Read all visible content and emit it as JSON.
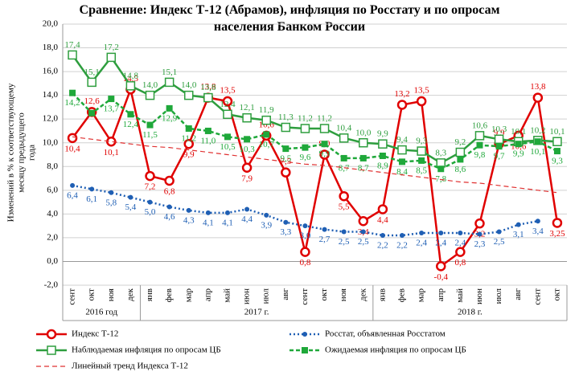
{
  "chart_data": {
    "type": "line",
    "title": "Сравнение: Индекс Т-12 (Абрамов), инфляция по Росстату и по опросам населения Банком России",
    "ylabel": [
      "Изменений в % к соответствующему",
      "месяцу предыдущего",
      "года"
    ],
    "categories": [
      "сент",
      "окт",
      "ноя",
      "дек",
      "янв",
      "фев",
      "мар",
      "апр",
      "май",
      "июн",
      "июл",
      "авг",
      "сент",
      "окт",
      "ноя",
      "дек",
      "янв",
      "фев",
      "мар",
      "апр",
      "май",
      "июн",
      "июл",
      "авг",
      "сент",
      "окт"
    ],
    "x_groups": [
      {
        "label": "2016 год",
        "count": 4
      },
      {
        "label": "2017 г.",
        "count": 12
      },
      {
        "label": "2018 г.",
        "count": 10
      }
    ],
    "ylim": [
      -2,
      20
    ],
    "yticks": [
      {
        "value": -2,
        "label": "-2,0"
      },
      {
        "value": 0,
        "label": "0,0"
      },
      {
        "value": 2,
        "label": "2,0"
      },
      {
        "value": 4,
        "label": "4,0"
      },
      {
        "value": 6,
        "label": "6,0"
      },
      {
        "value": 8,
        "label": "8,0"
      },
      {
        "value": 10,
        "label": "10,0"
      },
      {
        "value": 12,
        "label": "12,0"
      },
      {
        "value": 14,
        "label": "14,0"
      },
      {
        "value": 16,
        "label": "16,0"
      },
      {
        "value": 18,
        "label": "18,0"
      },
      {
        "value": 20,
        "label": "20,0"
      }
    ],
    "grid": true,
    "series": [
      {
        "name": "Индекс Т-12",
        "color": "#e00000",
        "dash": "solid",
        "marker": "circle-open",
        "values": [
          10.4,
          12.6,
          10.1,
          14.5,
          7.2,
          6.8,
          9.9,
          13.8,
          13.5,
          7.9,
          10.6,
          7.5,
          0.8,
          9.0,
          5.5,
          3.4,
          4.4,
          13.2,
          13.5,
          -0.4,
          0.8,
          3.2,
          9.9,
          10.6,
          13.8,
          3.25
        ],
        "value_labels": [
          "10,4",
          "12,6",
          "10,1",
          "14,5",
          "7,2",
          "6,8",
          "9,9",
          "13,8",
          "13,5",
          "7,9",
          "10,6",
          "7,5",
          "0,8",
          "9,0",
          "5,5",
          "3,4",
          "4,4",
          "13,2",
          "13,5",
          "-0,4",
          "0,8",
          "3,2",
          "9,9",
          "10,6",
          "13,8",
          "3,25"
        ]
      },
      {
        "name": "Росстат, объявленная Росстатом",
        "color": "#1f5fb4",
        "dash": "dotted",
        "marker": "dot",
        "values": [
          6.4,
          6.1,
          5.8,
          5.4,
          5.0,
          4.6,
          4.3,
          4.1,
          4.1,
          4.4,
          3.9,
          3.3,
          3.0,
          2.7,
          2.5,
          2.5,
          2.2,
          2.2,
          2.4,
          2.4,
          2.4,
          2.3,
          2.5,
          3.1,
          3.4,
          null
        ],
        "value_labels": [
          "6,4",
          "6,1",
          "5,8",
          "5,4",
          "5,0",
          "4,6",
          "4,3",
          "4,1",
          "4,1",
          "4,4",
          "3,9",
          "3,3",
          "3,0",
          "2,7",
          "2,5",
          "2,5",
          "2,2",
          "2,2",
          "2,4",
          "2,4",
          "2,4",
          "2,3",
          "2,5",
          "3,1",
          "3,4",
          null
        ]
      },
      {
        "name": "Наблюдаемая инфляция по опросам ЦБ",
        "color": "#2e9e3e",
        "dash": "solid",
        "marker": "square-open",
        "values": [
          17.4,
          15.1,
          17.2,
          14.8,
          14.0,
          15.1,
          14.0,
          13.8,
          12.4,
          12.1,
          11.9,
          11.3,
          11.2,
          11.2,
          10.4,
          10.0,
          9.9,
          9.4,
          9.3,
          8.3,
          9.2,
          10.6,
          10.3,
          10.1,
          10.2,
          10.1
        ],
        "value_labels": [
          "17,4",
          "15,1",
          "17,2",
          "14,8",
          "14,0",
          "15,1",
          "14,0",
          "13,8",
          "12,4",
          "12,1",
          "11,9",
          "11,3",
          "11,2",
          "11,2",
          "10,4",
          "10,0",
          "9,9",
          "9,4",
          "9,3",
          "8,3",
          "9,2",
          "10,6",
          "10,3",
          "10,1",
          "10,2",
          "10,1"
        ]
      },
      {
        "name": "Ожидаемая инфляция по опросам ЦБ",
        "color": "#1fa83a",
        "dash": "dashed",
        "marker": "square",
        "values": [
          14.2,
          12.5,
          13.7,
          12.4,
          11.5,
          12.9,
          11.2,
          11.0,
          10.5,
          10.3,
          10.7,
          9.5,
          9.6,
          9.9,
          8.7,
          8.7,
          8.9,
          8.4,
          8.5,
          7.8,
          8.6,
          9.8,
          9.7,
          9.9,
          10.1,
          9.3
        ],
        "value_labels": [
          "14,2",
          null,
          "13,7",
          "12,4",
          "11,5",
          "12,9",
          "11,2",
          "11,0",
          "10,5",
          "10,3",
          "10,7",
          "9,5",
          "9,6",
          "9,9",
          "8,7",
          "8,7",
          "8,9",
          "8,4",
          "8,5",
          "7,8",
          "8,6",
          "9,8",
          "9,7",
          "9,9",
          "10,1",
          "9,3"
        ]
      },
      {
        "name": "Линейный тренд Индекса Т-12",
        "color": "#e03030",
        "dash": "trend",
        "marker": "none",
        "values": [
          10.5,
          10.3,
          10.1,
          9.9,
          9.7,
          9.6,
          9.4,
          9.2,
          9.0,
          8.8,
          8.6,
          8.4,
          8.2,
          8.1,
          7.9,
          7.7,
          7.5,
          7.3,
          7.1,
          6.9,
          6.7,
          6.6,
          6.4,
          6.2,
          6.0,
          5.8
        ]
      }
    ]
  }
}
